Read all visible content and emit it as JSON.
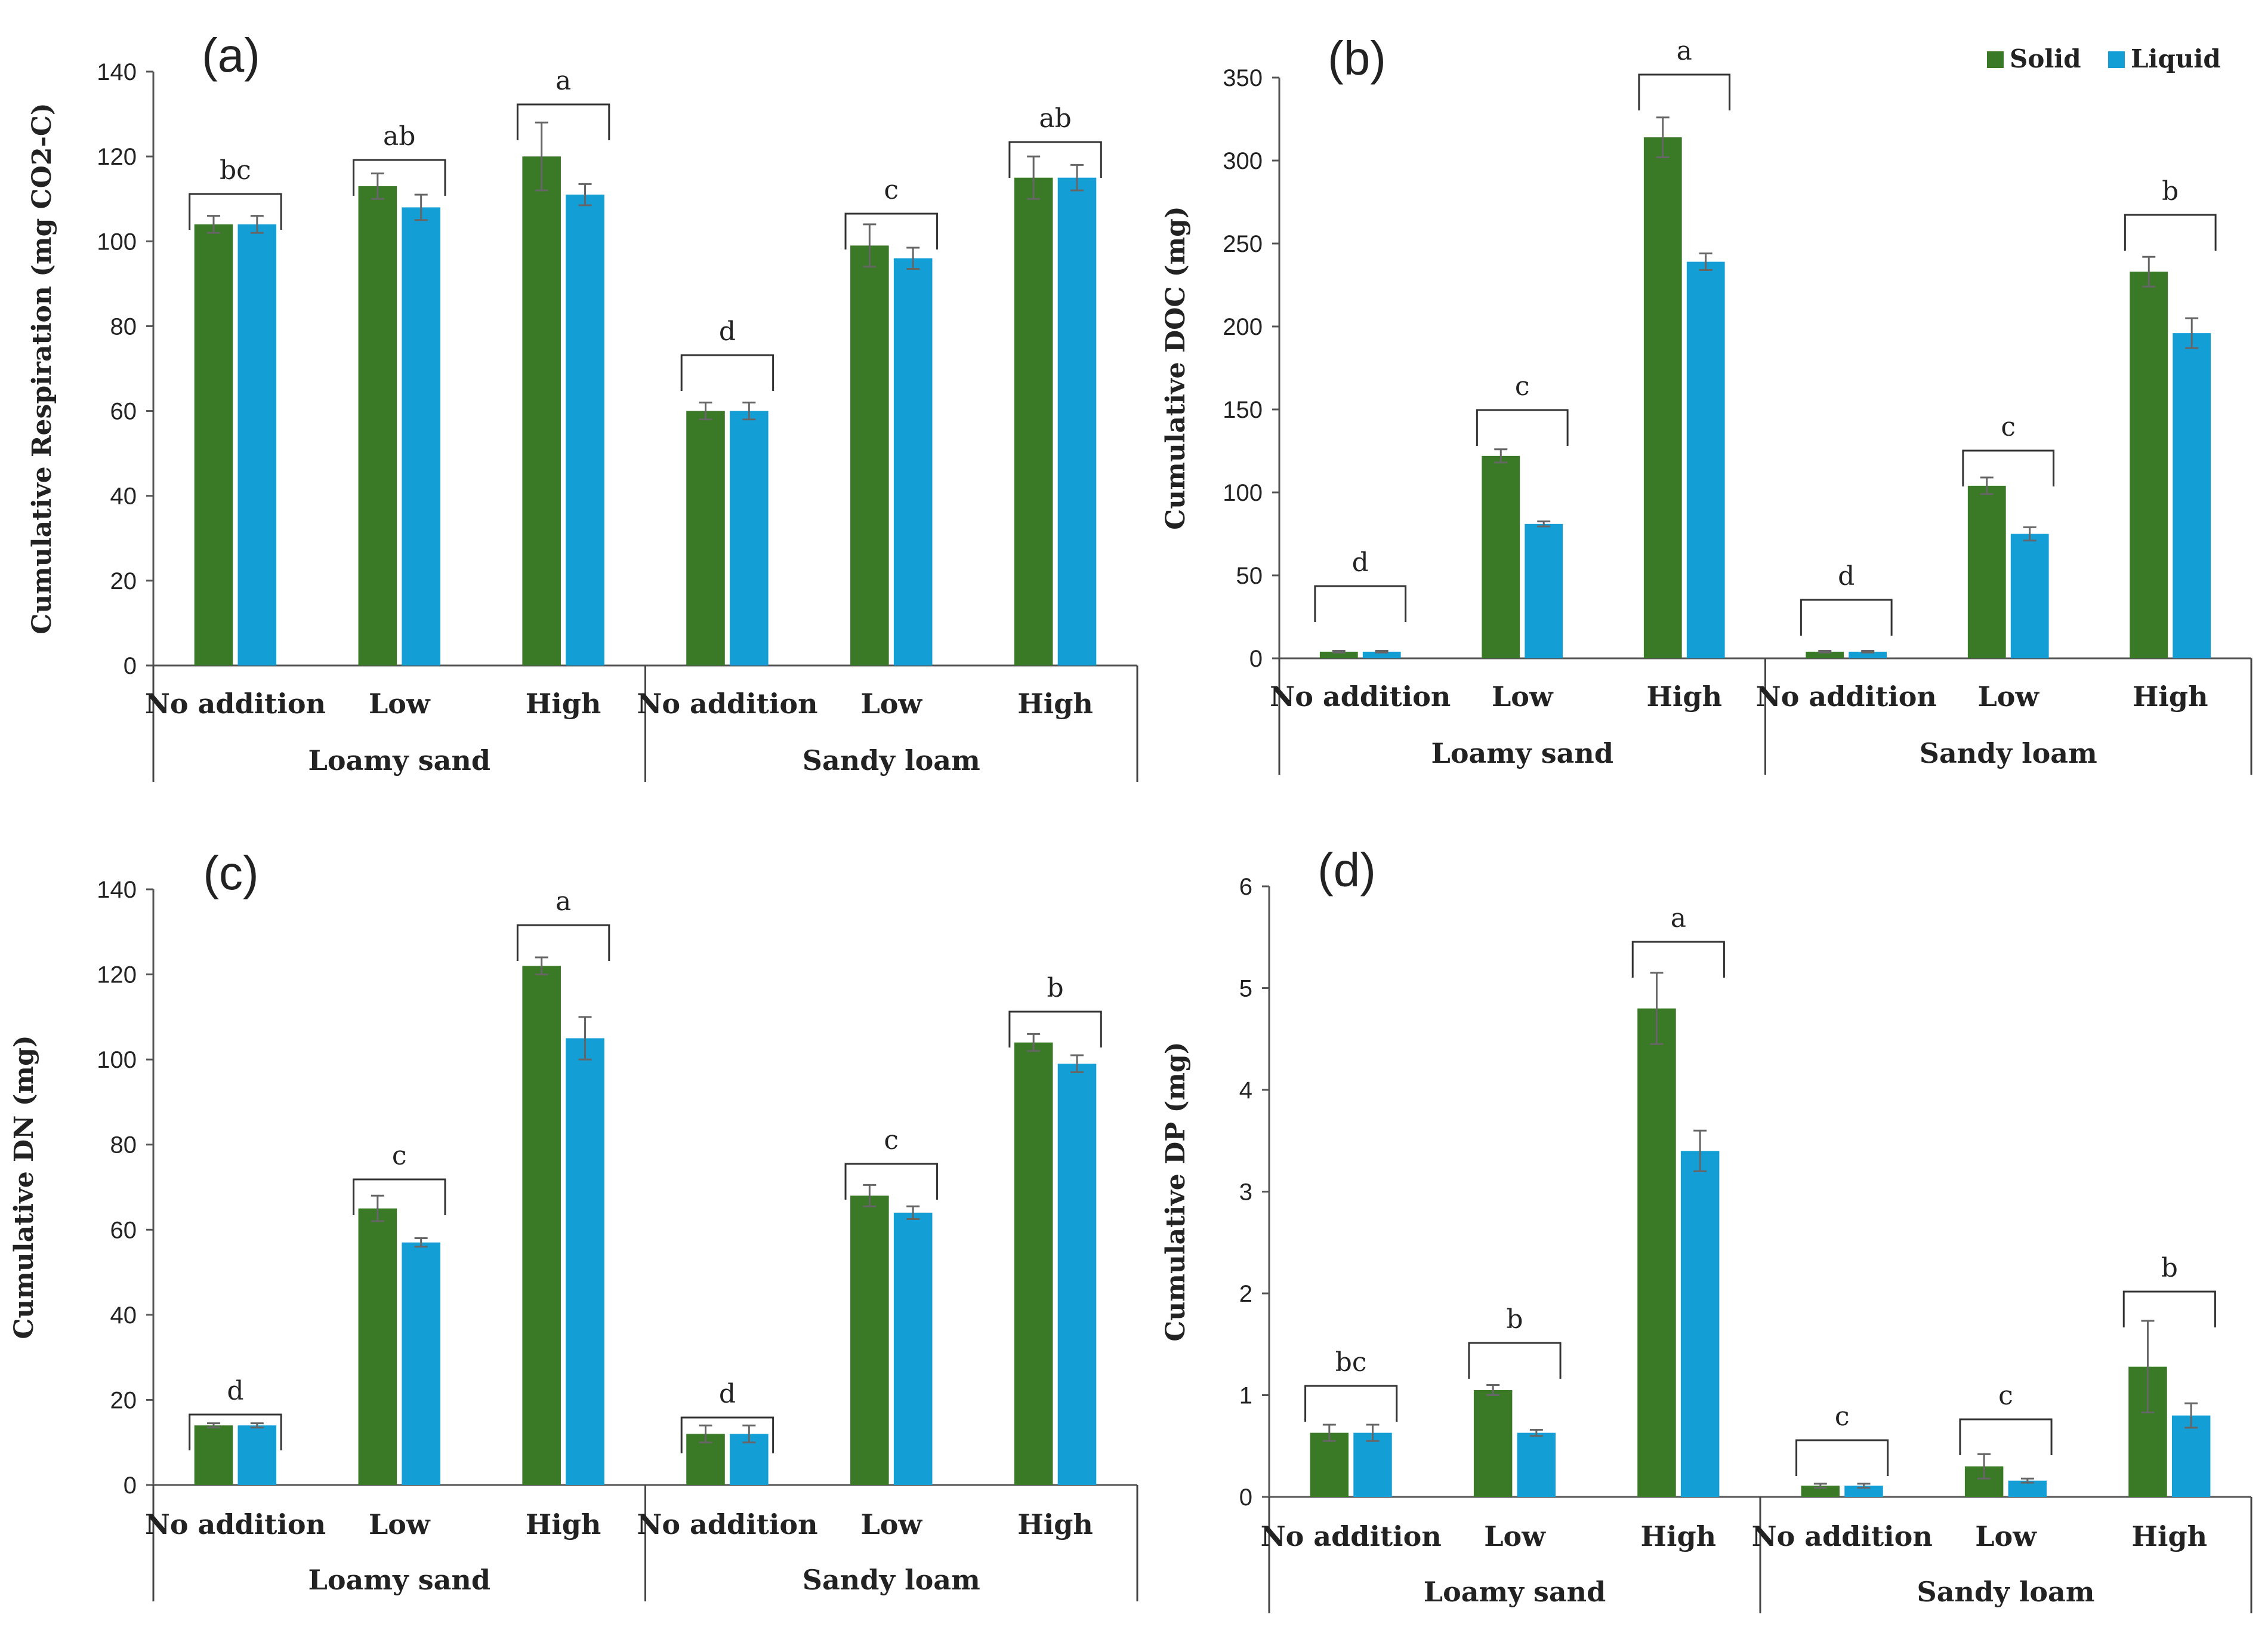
{
  "legend": {
    "items": [
      {
        "label": "Solid",
        "color": "#3a7a27"
      },
      {
        "label": "Liquid",
        "color": "#149ed6"
      }
    ]
  },
  "chart_data": [
    {
      "panel": "(a)",
      "type": "bar",
      "ylabel": "Cumulative Respiration (mg CO2-C)",
      "ylim": [
        0,
        140
      ],
      "yticks": [
        0,
        20,
        40,
        60,
        80,
        100,
        120,
        140
      ],
      "categories": [
        "No addition",
        "Low",
        "High",
        "No addition",
        "Low",
        "High"
      ],
      "groups": [
        {
          "label": "Loamy sand",
          "span": [
            0,
            3
          ]
        },
        {
          "label": "Sandy loam",
          "span": [
            3,
            6
          ]
        }
      ],
      "series": [
        {
          "name": "Solid",
          "values": [
            104,
            113,
            120,
            60,
            99,
            115
          ],
          "errors": [
            2,
            3,
            8,
            2,
            5,
            5
          ]
        },
        {
          "name": "Liquid",
          "values": [
            104,
            108,
            111,
            60,
            96,
            115
          ],
          "errors": [
            2,
            3,
            2.5,
            2,
            2.5,
            3
          ]
        }
      ],
      "letters": [
        "bc",
        "ab",
        "a",
        "d",
        "c",
        "ab"
      ]
    },
    {
      "panel": "(b)",
      "type": "bar",
      "ylabel": "Cumulative DOC (mg)",
      "ylim": [
        0,
        350
      ],
      "yticks": [
        0,
        50,
        100,
        150,
        200,
        250,
        300,
        350
      ],
      "categories": [
        "No addition",
        "Low",
        "High",
        "No addition",
        "Low",
        "High"
      ],
      "groups": [
        {
          "label": "Loamy sand",
          "span": [
            0,
            3
          ]
        },
        {
          "label": "Sandy loam",
          "span": [
            3,
            6
          ]
        }
      ],
      "series": [
        {
          "name": "Solid",
          "values": [
            4,
            122,
            314,
            4,
            104,
            233
          ],
          "errors": [
            0.5,
            4,
            12,
            0.5,
            5,
            9
          ]
        },
        {
          "name": "Liquid",
          "values": [
            4,
            81,
            239,
            4,
            75,
            196
          ],
          "errors": [
            0.5,
            1.5,
            5,
            0.5,
            4,
            9
          ]
        }
      ],
      "letters": [
        "d",
        "c",
        "a",
        "d",
        "c",
        "b"
      ]
    },
    {
      "panel": "(c)",
      "type": "bar",
      "ylabel": "Cumulative DN (mg)",
      "ylim": [
        0,
        140
      ],
      "yticks": [
        0,
        20,
        40,
        60,
        80,
        100,
        120,
        140
      ],
      "categories": [
        "No addition",
        "Low",
        "High",
        "No addition",
        "Low",
        "High"
      ],
      "groups": [
        {
          "label": "Loamy sand",
          "span": [
            0,
            3
          ]
        },
        {
          "label": "Sandy loam",
          "span": [
            3,
            6
          ]
        }
      ],
      "series": [
        {
          "name": "Solid",
          "values": [
            14,
            65,
            122,
            12,
            68,
            104
          ],
          "errors": [
            0.5,
            3,
            2,
            2,
            2.5,
            2
          ]
        },
        {
          "name": "Liquid",
          "values": [
            14,
            57,
            105,
            12,
            64,
            99
          ],
          "errors": [
            0.5,
            1,
            5,
            2,
            1.5,
            2
          ]
        }
      ],
      "letters": [
        "d",
        "c",
        "a",
        "d",
        "c",
        "b"
      ]
    },
    {
      "panel": "(d)",
      "type": "bar",
      "ylabel": "Cumulative DP (mg)",
      "ylim": [
        0,
        6
      ],
      "yticks": [
        0,
        1,
        2,
        3,
        4,
        5,
        6
      ],
      "categories": [
        "No addition",
        "Low",
        "High",
        "No addition",
        "Low",
        "High"
      ],
      "groups": [
        {
          "label": "Loamy sand",
          "span": [
            0,
            3
          ]
        },
        {
          "label": "Sandy loam",
          "span": [
            3,
            6
          ]
        }
      ],
      "series": [
        {
          "name": "Solid",
          "values": [
            0.63,
            1.05,
            4.8,
            0.11,
            0.3,
            1.28
          ],
          "errors": [
            0.08,
            0.05,
            0.35,
            0.02,
            0.12,
            0.45
          ]
        },
        {
          "name": "Liquid",
          "values": [
            0.63,
            0.63,
            3.4,
            0.11,
            0.16,
            0.8
          ],
          "errors": [
            0.08,
            0.03,
            0.2,
            0.02,
            0.02,
            0.12
          ]
        }
      ],
      "letters": [
        "bc",
        "b",
        "a",
        "c",
        "c",
        "b"
      ]
    }
  ]
}
